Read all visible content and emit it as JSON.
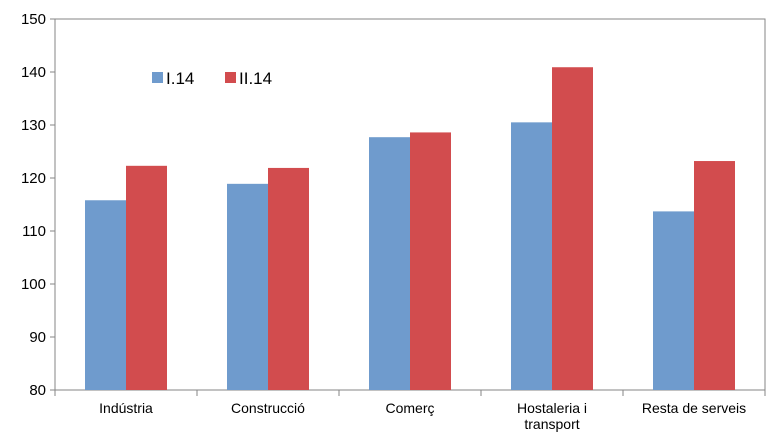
{
  "chart_data": {
    "type": "bar",
    "categories": [
      [
        "Indústria"
      ],
      [
        "Construcció"
      ],
      [
        "Comerç"
      ],
      [
        "Hostaleria i",
        "transport"
      ],
      [
        "Resta de serveis"
      ]
    ],
    "series": [
      {
        "name": "I.14",
        "color": "#6f9bcd",
        "values": [
          115.8,
          118.9,
          127.7,
          130.5,
          113.7
        ]
      },
      {
        "name": "II.14",
        "color": "#d24c4e",
        "values": [
          122.3,
          121.9,
          128.6,
          140.9,
          123.2
        ]
      }
    ],
    "ylim": [
      80,
      150
    ],
    "yticks": [
      80,
      90,
      100,
      110,
      120,
      130,
      140,
      150
    ],
    "grid": false,
    "legend": "top-left",
    "title": "",
    "xlabel": "",
    "ylabel": ""
  }
}
